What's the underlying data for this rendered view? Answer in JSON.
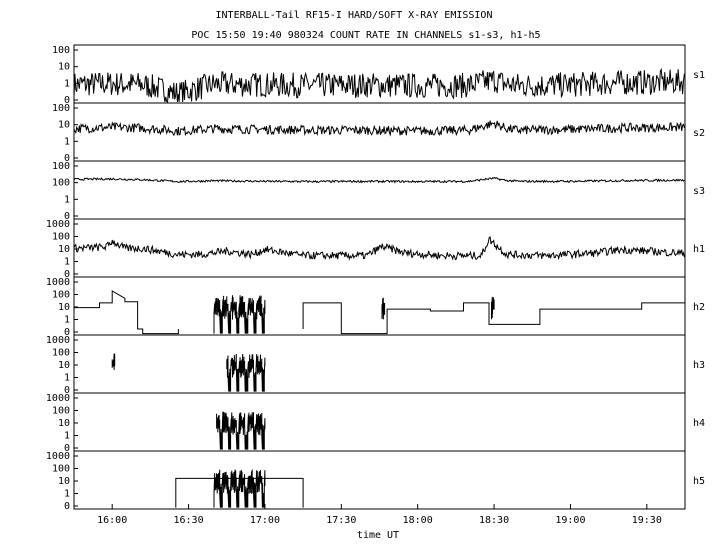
{
  "title_line1": "INTERBALL-Tail RF15-I HARD/SOFT X-RAY EMISSION",
  "title_line2": "POC 15:50 19:40 980324  COUNT RATE IN CHANNELS s1-s3, h1-h5",
  "chart_data": {
    "type": "line",
    "xlabel": "time UT",
    "x_ticks": [
      "16:00",
      "16:30",
      "17:00",
      "17:30",
      "18:00",
      "18:30",
      "19:00",
      "19:30"
    ],
    "x_range_minutes": [
      945,
      1185
    ],
    "panels": [
      {
        "name": "s1",
        "yticks": [
          "100",
          "10",
          "1",
          "0"
        ],
        "ylim_log": [
          0,
          2
        ],
        "segments": [
          {
            "t": [
              945,
              960,
              972,
              986,
              1000,
              1020,
              1040,
              1060,
              1080,
              1100,
              1110,
              1115,
              1120,
              1140,
              1160,
              1185
            ],
            "v": [
              3.5,
              3.8,
              3.5,
              1.4,
              3.6,
              3.4,
              3.2,
              3.3,
              3.1,
              3.2,
              5.5,
              3.6,
              3.2,
              3.4,
              4.2,
              4.6
            ]
          }
        ],
        "noise": 0.55
      },
      {
        "name": "s2",
        "yticks": [
          "100",
          "10",
          "1",
          "0"
        ],
        "ylim_log": [
          0,
          2
        ],
        "segments": [
          {
            "t": [
              945,
              960,
              972,
              986,
              1000,
              1020,
              1040,
              1060,
              1080,
              1100,
              1110,
              1115,
              1120,
              1140,
              1160,
              1185
            ],
            "v": [
              14,
              16,
              15,
              11,
              14,
              13,
              12,
              12,
              11,
              12,
              24,
              14,
              12,
              13,
              15,
              16
            ]
          }
        ],
        "noise": 0.2
      },
      {
        "name": "s3",
        "yticks": [
          "100",
          "100",
          "1",
          "0"
        ],
        "ylim_log": [
          0,
          2.7
        ],
        "segments": [
          {
            "t": [
              945,
              960,
              972,
              986,
              1000,
              1020,
              1040,
              1060,
              1080,
              1100,
              1110,
              1115,
              1120,
              1140,
              1160,
              1185
            ],
            "v": [
              95,
              100,
              90,
              70,
              78,
              72,
              70,
              72,
              70,
              72,
              110,
              80,
              72,
              72,
              80,
              85
            ]
          }
        ],
        "noise": 0.06
      },
      {
        "name": "h1",
        "yticks": [
          "1000",
          "100",
          "10",
          "1",
          "0"
        ],
        "ylim_log": [
          0,
          3
        ],
        "segments": [
          {
            "t": [
              945,
              955,
              958,
              960,
              965,
              972,
              986,
              995,
              1005,
              1015,
              1020,
              1035,
              1040,
              1060,
              1066,
              1075,
              1090,
              1105,
              1108,
              1115,
              1130,
              1150,
              1160,
              1170,
              1185
            ],
            "v": [
              30,
              35,
              40,
              90,
              30,
              30,
              12,
              12,
              20,
              12,
              25,
              10,
              10,
              10,
              40,
              15,
              10,
              10,
              120,
              12,
              10,
              15,
              25,
              20,
              14
            ]
          }
        ],
        "noise": 0.25
      },
      {
        "name": "h2",
        "yticks": [
          "1000",
          "100",
          "10",
          "1",
          "0"
        ],
        "ylim_log": [
          0,
          3
        ],
        "segments": [
          {
            "t": [
              945,
              955,
              955,
              960,
              960,
              965,
              965,
              970,
              970,
              972,
              972,
              986,
              986
            ],
            "v": [
              25,
              25,
              50,
              50,
              300,
              100,
              60,
              60,
              1,
              1,
              0.5,
              0.5,
              1
            ]
          },
          {
            "t": [
              1035,
              1035,
              1050,
              1050,
              1068,
              1068,
              1085,
              1085,
              1098,
              1098,
              1108,
              1108,
              1128,
              1128,
              1168,
              1168,
              1185
            ],
            "v": [
              1,
              50,
              50,
              0.5,
              0.5,
              20,
              20,
              15,
              15,
              50,
              50,
              2,
              2,
              20,
              20,
              50,
              50
            ]
          }
        ],
        "bursts": [
          [
            1000,
            1020
          ],
          [
            1066,
            1067
          ],
          [
            1109,
            1110
          ]
        ],
        "noise": 0.1
      },
      {
        "name": "h3",
        "yticks": [
          "1000",
          "100",
          "10",
          "1",
          "0"
        ],
        "ylim_log": [
          0,
          3
        ],
        "segments": [],
        "bursts": [
          [
            960,
            961
          ],
          [
            1005,
            1020
          ]
        ],
        "noise": 0.1
      },
      {
        "name": "h4",
        "yticks": [
          "1000",
          "100",
          "10",
          "1",
          "0"
        ],
        "ylim_log": [
          0,
          3
        ],
        "segments": [],
        "bursts": [
          [
            1001,
            1020
          ]
        ],
        "noise": 0.1
      },
      {
        "name": "h5",
        "yticks": [
          "1000",
          "100",
          "10",
          "1",
          "0"
        ],
        "ylim_log": [
          0,
          3
        ],
        "segments": [
          {
            "t": [
              985,
              985,
              1035,
              1035
            ],
            "v": [
              0.5,
              40,
              40,
              0.5
            ]
          }
        ],
        "bursts": [
          [
            1000,
            1020
          ]
        ],
        "noise": 0.1
      }
    ]
  }
}
